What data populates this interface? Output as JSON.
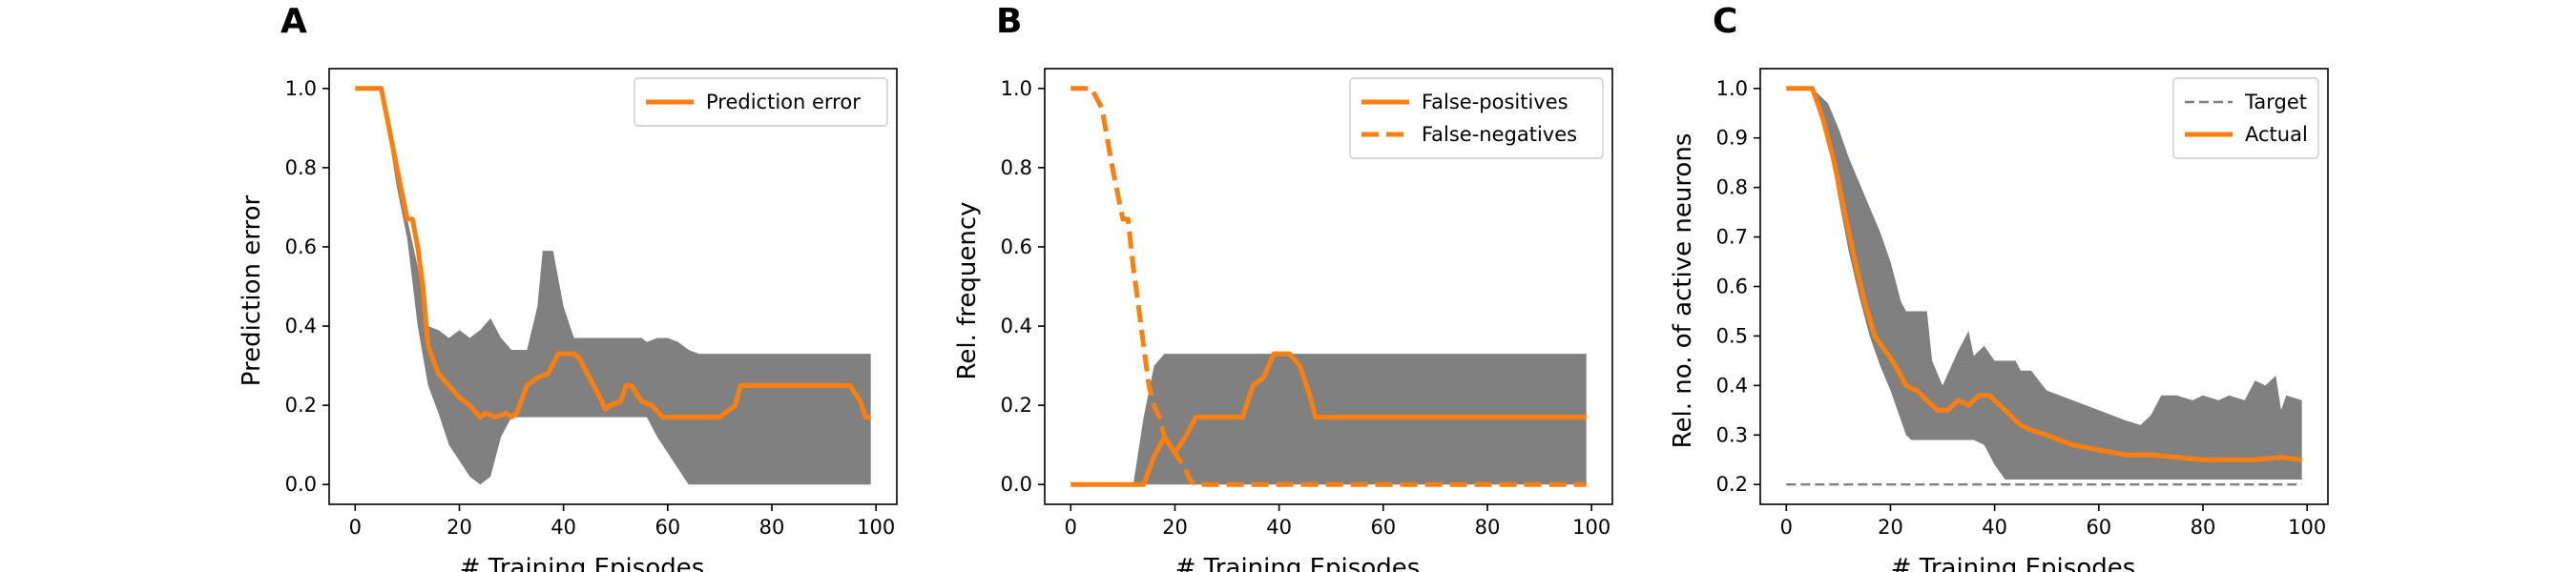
{
  "chart_data": [
    {
      "panel": "A",
      "type": "line",
      "xlabel": "# Training Episodes",
      "ylabel": "Prediction error",
      "xlim": [
        -5,
        104
      ],
      "ylim": [
        -0.05,
        1.05
      ],
      "xticks": [
        0,
        20,
        40,
        60,
        80,
        100
      ],
      "yticks": [
        0.0,
        0.2,
        0.4,
        0.6,
        0.8,
        1.0
      ],
      "ytick_labels": [
        "0.0",
        "0.2",
        "0.4",
        "0.6",
        "0.8",
        "1.0"
      ],
      "legend_position": "upper right",
      "band_color": "#808080",
      "band": [
        {
          "x": 0,
          "lo": 1.0,
          "hi": 1.0
        },
        {
          "x": 5,
          "lo": 1.0,
          "hi": 1.0
        },
        {
          "x": 8,
          "lo": 0.75,
          "hi": 0.8
        },
        {
          "x": 10,
          "lo": 0.62,
          "hi": 0.67
        },
        {
          "x": 12,
          "lo": 0.4,
          "hi": 0.55
        },
        {
          "x": 14,
          "lo": 0.25,
          "hi": 0.4
        },
        {
          "x": 16,
          "lo": 0.18,
          "hi": 0.39
        },
        {
          "x": 18,
          "lo": 0.1,
          "hi": 0.37
        },
        {
          "x": 20,
          "lo": 0.06,
          "hi": 0.39
        },
        {
          "x": 22,
          "lo": 0.02,
          "hi": 0.37
        },
        {
          "x": 24,
          "lo": 0.0,
          "hi": 0.39
        },
        {
          "x": 26,
          "lo": 0.02,
          "hi": 0.42
        },
        {
          "x": 28,
          "lo": 0.12,
          "hi": 0.37
        },
        {
          "x": 30,
          "lo": 0.17,
          "hi": 0.34
        },
        {
          "x": 33,
          "lo": 0.17,
          "hi": 0.34
        },
        {
          "x": 35,
          "lo": 0.17,
          "hi": 0.45
        },
        {
          "x": 36,
          "lo": 0.17,
          "hi": 0.59
        },
        {
          "x": 38,
          "lo": 0.17,
          "hi": 0.59
        },
        {
          "x": 40,
          "lo": 0.17,
          "hi": 0.45
        },
        {
          "x": 42,
          "lo": 0.17,
          "hi": 0.37
        },
        {
          "x": 55,
          "lo": 0.17,
          "hi": 0.37
        },
        {
          "x": 56,
          "lo": 0.17,
          "hi": 0.36
        },
        {
          "x": 58,
          "lo": 0.12,
          "hi": 0.37
        },
        {
          "x": 60,
          "lo": 0.08,
          "hi": 0.37
        },
        {
          "x": 62,
          "lo": 0.04,
          "hi": 0.36
        },
        {
          "x": 64,
          "lo": 0.0,
          "hi": 0.34
        },
        {
          "x": 66,
          "lo": 0.0,
          "hi": 0.33
        },
        {
          "x": 99,
          "lo": 0.0,
          "hi": 0.33
        }
      ],
      "series": [
        {
          "name": "Prediction error",
          "color": "#ff7f0e",
          "dash": "solid",
          "x": [
            0,
            5,
            8,
            10,
            11,
            12,
            13,
            14,
            16,
            18,
            20,
            22,
            24,
            25,
            27,
            29,
            30,
            31,
            33,
            35,
            37,
            39,
            40,
            42,
            43,
            45,
            47,
            48,
            49,
            51,
            52,
            53,
            55,
            57,
            59,
            60,
            61,
            70,
            73,
            74,
            80,
            90,
            93,
            95,
            97,
            98,
            99
          ],
          "y": [
            1.0,
            1.0,
            0.8,
            0.67,
            0.67,
            0.6,
            0.5,
            0.35,
            0.28,
            0.25,
            0.22,
            0.2,
            0.17,
            0.18,
            0.17,
            0.18,
            0.17,
            0.18,
            0.25,
            0.27,
            0.28,
            0.33,
            0.33,
            0.33,
            0.32,
            0.27,
            0.22,
            0.19,
            0.2,
            0.21,
            0.25,
            0.25,
            0.21,
            0.2,
            0.17,
            0.17,
            0.17,
            0.17,
            0.2,
            0.25,
            0.25,
            0.25,
            0.25,
            0.25,
            0.21,
            0.17,
            0.17
          ]
        }
      ]
    },
    {
      "panel": "B",
      "type": "line",
      "xlabel": "# Training Episodes",
      "ylabel": "Rel. frequency",
      "xlim": [
        -5,
        104
      ],
      "ylim": [
        -0.05,
        1.05
      ],
      "xticks": [
        0,
        20,
        40,
        60,
        80,
        100
      ],
      "yticks": [
        0.0,
        0.2,
        0.4,
        0.6,
        0.8,
        1.0
      ],
      "ytick_labels": [
        "0.0",
        "0.2",
        "0.4",
        "0.6",
        "0.8",
        "1.0"
      ],
      "legend_position": "upper right",
      "band_color": "#808080",
      "band": [
        {
          "x": 12,
          "lo": 0.0,
          "hi": 0.0
        },
        {
          "x": 14,
          "lo": 0.0,
          "hi": 0.17
        },
        {
          "x": 16,
          "lo": 0.0,
          "hi": 0.3
        },
        {
          "x": 18,
          "lo": 0.0,
          "hi": 0.33
        },
        {
          "x": 20,
          "lo": 0.0,
          "hi": 0.33
        },
        {
          "x": 22,
          "lo": 0.0,
          "hi": 0.33
        },
        {
          "x": 24,
          "lo": 0.0,
          "hi": 0.33
        },
        {
          "x": 99,
          "lo": 0.0,
          "hi": 0.33
        }
      ],
      "series": [
        {
          "name": "False-positives",
          "color": "#ff7f0e",
          "dash": "solid",
          "x": [
            0,
            10,
            14,
            16,
            18,
            20,
            22,
            24,
            26,
            30,
            33,
            35,
            37,
            39,
            40,
            42,
            44,
            46,
            47,
            50,
            60,
            70,
            80,
            90,
            99
          ],
          "y": [
            0.0,
            0.0,
            0.0,
            0.07,
            0.12,
            0.08,
            0.12,
            0.17,
            0.17,
            0.17,
            0.17,
            0.25,
            0.27,
            0.33,
            0.33,
            0.33,
            0.3,
            0.22,
            0.17,
            0.17,
            0.17,
            0.17,
            0.17,
            0.17,
            0.17
          ]
        },
        {
          "name": "False-negatives",
          "color": "#ff7f0e",
          "dash": "dashed",
          "x": [
            0,
            4,
            6,
            8,
            10,
            11,
            12,
            13,
            14,
            15,
            16,
            17,
            18,
            20,
            22,
            23,
            24,
            30,
            40,
            50,
            60,
            70,
            80,
            90,
            99
          ],
          "y": [
            1.0,
            1.0,
            0.95,
            0.8,
            0.67,
            0.67,
            0.55,
            0.45,
            0.35,
            0.25,
            0.2,
            0.17,
            0.12,
            0.08,
            0.04,
            0.01,
            0.0,
            0.0,
            0.0,
            0.0,
            0.0,
            0.0,
            0.0,
            0.0,
            0.0
          ]
        }
      ]
    },
    {
      "panel": "C",
      "type": "line",
      "xlabel": "# Training Episodes",
      "ylabel": "Rel. no. of active neurons",
      "xlim": [
        -5,
        104
      ],
      "ylim": [
        0.16,
        1.04
      ],
      "xticks": [
        0,
        20,
        40,
        60,
        80,
        100
      ],
      "yticks": [
        0.2,
        0.3,
        0.4,
        0.5,
        0.6,
        0.7,
        0.8,
        0.9,
        1.0
      ],
      "ytick_labels": [
        "0.2",
        "0.3",
        "0.4",
        "0.5",
        "0.6",
        "0.7",
        "0.8",
        "0.9",
        "1.0"
      ],
      "legend_position": "upper right",
      "band_color": "#808080",
      "band": [
        {
          "x": 0,
          "lo": 1.0,
          "hi": 1.0
        },
        {
          "x": 5,
          "lo": 1.0,
          "hi": 1.0
        },
        {
          "x": 8,
          "lo": 0.9,
          "hi": 0.97
        },
        {
          "x": 10,
          "lo": 0.78,
          "hi": 0.92
        },
        {
          "x": 12,
          "lo": 0.67,
          "hi": 0.86
        },
        {
          "x": 14,
          "lo": 0.58,
          "hi": 0.81
        },
        {
          "x": 16,
          "lo": 0.5,
          "hi": 0.76
        },
        {
          "x": 18,
          "lo": 0.44,
          "hi": 0.71
        },
        {
          "x": 20,
          "lo": 0.39,
          "hi": 0.65
        },
        {
          "x": 22,
          "lo": 0.33,
          "hi": 0.57
        },
        {
          "x": 23,
          "lo": 0.3,
          "hi": 0.55
        },
        {
          "x": 24,
          "lo": 0.29,
          "hi": 0.55
        },
        {
          "x": 27,
          "lo": 0.29,
          "hi": 0.55
        },
        {
          "x": 28,
          "lo": 0.29,
          "hi": 0.45
        },
        {
          "x": 30,
          "lo": 0.29,
          "hi": 0.4
        },
        {
          "x": 33,
          "lo": 0.29,
          "hi": 0.47
        },
        {
          "x": 35,
          "lo": 0.29,
          "hi": 0.51
        },
        {
          "x": 36,
          "lo": 0.29,
          "hi": 0.46
        },
        {
          "x": 38,
          "lo": 0.28,
          "hi": 0.48
        },
        {
          "x": 40,
          "lo": 0.24,
          "hi": 0.45
        },
        {
          "x": 42,
          "lo": 0.21,
          "hi": 0.45
        },
        {
          "x": 44,
          "lo": 0.21,
          "hi": 0.45
        },
        {
          "x": 45,
          "lo": 0.21,
          "hi": 0.43
        },
        {
          "x": 47,
          "lo": 0.21,
          "hi": 0.43
        },
        {
          "x": 50,
          "lo": 0.21,
          "hi": 0.39
        },
        {
          "x": 55,
          "lo": 0.21,
          "hi": 0.37
        },
        {
          "x": 60,
          "lo": 0.21,
          "hi": 0.35
        },
        {
          "x": 65,
          "lo": 0.21,
          "hi": 0.33
        },
        {
          "x": 68,
          "lo": 0.21,
          "hi": 0.32
        },
        {
          "x": 70,
          "lo": 0.21,
          "hi": 0.34
        },
        {
          "x": 72,
          "lo": 0.21,
          "hi": 0.38
        },
        {
          "x": 75,
          "lo": 0.21,
          "hi": 0.38
        },
        {
          "x": 78,
          "lo": 0.21,
          "hi": 0.37
        },
        {
          "x": 80,
          "lo": 0.21,
          "hi": 0.38
        },
        {
          "x": 83,
          "lo": 0.21,
          "hi": 0.37
        },
        {
          "x": 85,
          "lo": 0.21,
          "hi": 0.38
        },
        {
          "x": 88,
          "lo": 0.21,
          "hi": 0.37
        },
        {
          "x": 90,
          "lo": 0.21,
          "hi": 0.41
        },
        {
          "x": 92,
          "lo": 0.21,
          "hi": 0.4
        },
        {
          "x": 94,
          "lo": 0.21,
          "hi": 0.42
        },
        {
          "x": 95,
          "lo": 0.21,
          "hi": 0.35
        },
        {
          "x": 96,
          "lo": 0.21,
          "hi": 0.38
        },
        {
          "x": 99,
          "lo": 0.21,
          "hi": 0.37
        }
      ],
      "series": [
        {
          "name": "Target",
          "color": "#808080",
          "dash": "dashed",
          "x": [
            0,
            99
          ],
          "y": [
            0.2,
            0.2
          ]
        },
        {
          "name": "Actual",
          "color": "#ff7f0e",
          "dash": "solid",
          "x": [
            0,
            5,
            7,
            9,
            11,
            13,
            15,
            17,
            19,
            21,
            23,
            25,
            27,
            29,
            31,
            33,
            35,
            37,
            39,
            41,
            43,
            45,
            47,
            50,
            55,
            60,
            65,
            70,
            75,
            80,
            85,
            90,
            95,
            99
          ],
          "y": [
            1.0,
            1.0,
            0.94,
            0.86,
            0.76,
            0.66,
            0.57,
            0.5,
            0.47,
            0.44,
            0.4,
            0.39,
            0.37,
            0.35,
            0.35,
            0.37,
            0.36,
            0.38,
            0.38,
            0.36,
            0.34,
            0.32,
            0.31,
            0.3,
            0.28,
            0.27,
            0.26,
            0.26,
            0.255,
            0.25,
            0.25,
            0.25,
            0.255,
            0.25
          ]
        }
      ]
    }
  ]
}
